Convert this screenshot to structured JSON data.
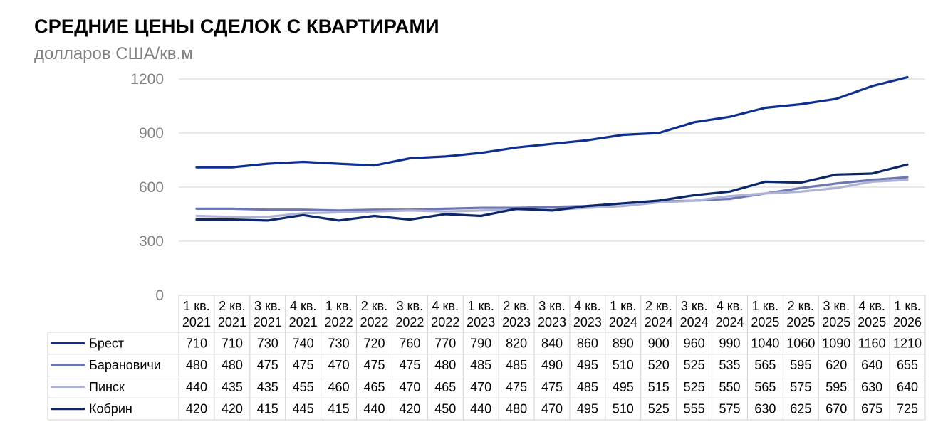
{
  "chart_title": "СРЕДНИЕ ЦЕНЫ СДЕЛОК С КВАРТИРАМИ",
  "chart_subtitle": "долларов США/кв.м",
  "chart_data": {
    "type": "line",
    "title": "СРЕДНИЕ ЦЕНЫ СДЕЛОК С КВАРТИРАМИ",
    "subtitle": "долларов США/кв.м",
    "ylim": [
      0,
      1200
    ],
    "yticks": [
      0,
      300,
      600,
      900,
      1200
    ],
    "grid": true,
    "legend": "data-table-below",
    "categories": [
      [
        "1 кв.",
        "2021"
      ],
      [
        "2 кв.",
        "2021"
      ],
      [
        "3 кв.",
        "2021"
      ],
      [
        "4 кв.",
        "2021"
      ],
      [
        "1 кв.",
        "2022"
      ],
      [
        "2 кв.",
        "2022"
      ],
      [
        "3 кв.",
        "2022"
      ],
      [
        "4 кв.",
        "2022"
      ],
      [
        "1 кв.",
        "2023"
      ],
      [
        "2 кв.",
        "2023"
      ],
      [
        "3 кв.",
        "2023"
      ],
      [
        "4 кв.",
        "2023"
      ],
      [
        "1 кв.",
        "2024"
      ],
      [
        "2 кв.",
        "2024"
      ],
      [
        "3 кв.",
        "2024"
      ],
      [
        "4 кв.",
        "2024"
      ],
      [
        "1 кв.",
        "2025"
      ],
      [
        "2 кв.",
        "2025"
      ],
      [
        "3 кв.",
        "2025"
      ],
      [
        "4 кв.",
        "2025"
      ],
      [
        "1 кв.",
        "2026"
      ]
    ],
    "series": [
      {
        "name": "Брест",
        "color": "#0e2f8f",
        "values": [
          710,
          710,
          730,
          740,
          730,
          720,
          760,
          770,
          790,
          820,
          840,
          860,
          890,
          900,
          960,
          990,
          1040,
          1060,
          1090,
          1160,
          1210
        ]
      },
      {
        "name": "Барановичи",
        "color": "#6d77b3",
        "values": [
          480,
          480,
          475,
          475,
          470,
          475,
          475,
          480,
          485,
          485,
          490,
          495,
          510,
          520,
          525,
          535,
          565,
          595,
          620,
          640,
          655
        ]
      },
      {
        "name": "Пинск",
        "color": "#aeb3d6",
        "values": [
          440,
          435,
          435,
          455,
          460,
          465,
          470,
          465,
          470,
          475,
          475,
          485,
          495,
          515,
          525,
          550,
          565,
          575,
          595,
          630,
          640
        ]
      },
      {
        "name": "Кобрин",
        "color": "#0b2769",
        "values": [
          420,
          420,
          415,
          445,
          415,
          440,
          420,
          450,
          440,
          480,
          470,
          495,
          510,
          525,
          555,
          575,
          630,
          625,
          670,
          675,
          725
        ]
      }
    ]
  }
}
